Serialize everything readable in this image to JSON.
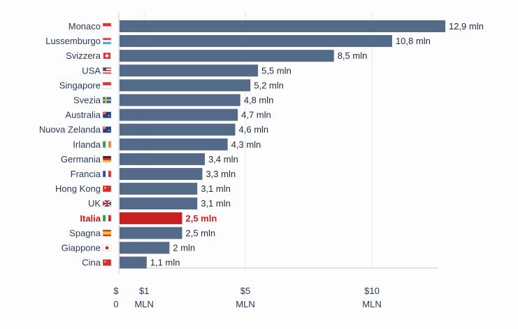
{
  "chart_data": {
    "type": "bar",
    "orientation": "horizontal",
    "categories": [
      "Monaco",
      "Lussemburgo",
      "Svizzera",
      "USA",
      "Singapore",
      "Svezia",
      "Australia",
      "Nuova Zelanda",
      "Irlanda",
      "Germania",
      "Francia",
      "Hong Kong",
      "UK",
      "Italia",
      "Spagna",
      "Giappone",
      "Cina"
    ],
    "values": [
      12.9,
      10.8,
      8.5,
      5.5,
      5.2,
      4.8,
      4.7,
      4.6,
      4.3,
      3.4,
      3.3,
      3.1,
      3.1,
      2.5,
      2.5,
      2,
      1.1
    ],
    "value_labels": [
      "12,9 mln",
      "10,8 mln",
      "8,5 mln",
      "5,5 mln",
      "5,2 mln",
      "4,8 mln",
      "4,7 mln",
      "4,6 mln",
      "4,3 mln",
      "3,4 mln",
      "3,3 mln",
      "3,1 mln",
      "3,1 mln",
      "2,5 mln",
      "2,5 mln",
      "2 mln",
      "1,1 mln"
    ],
    "flags": [
      "monaco-flag",
      "luxembourg-flag",
      "switzerland-flag",
      "usa-flag",
      "singapore-flag",
      "sweden-flag",
      "australia-flag",
      "new-zealand-flag",
      "ireland-flag",
      "germany-flag",
      "france-flag",
      "hong-kong-flag",
      "uk-flag",
      "italy-flag",
      "spain-flag",
      "japan-flag",
      "china-flag"
    ],
    "highlight": "Italia",
    "xlim": [
      0,
      13
    ],
    "x_ticks": [
      {
        "value": 0,
        "line1": "$",
        "line2": "0"
      },
      {
        "value": 1,
        "line1": "$1",
        "line2": "MLN"
      },
      {
        "value": 5,
        "line1": "$5",
        "line2": "MLN"
      },
      {
        "value": 10,
        "line1": "$10",
        "line2": "MLN"
      }
    ],
    "title": "",
    "xlabel": "",
    "ylabel": "",
    "grid": true,
    "colors": {
      "bar": "#536a88",
      "highlight": "#c8201e"
    }
  }
}
